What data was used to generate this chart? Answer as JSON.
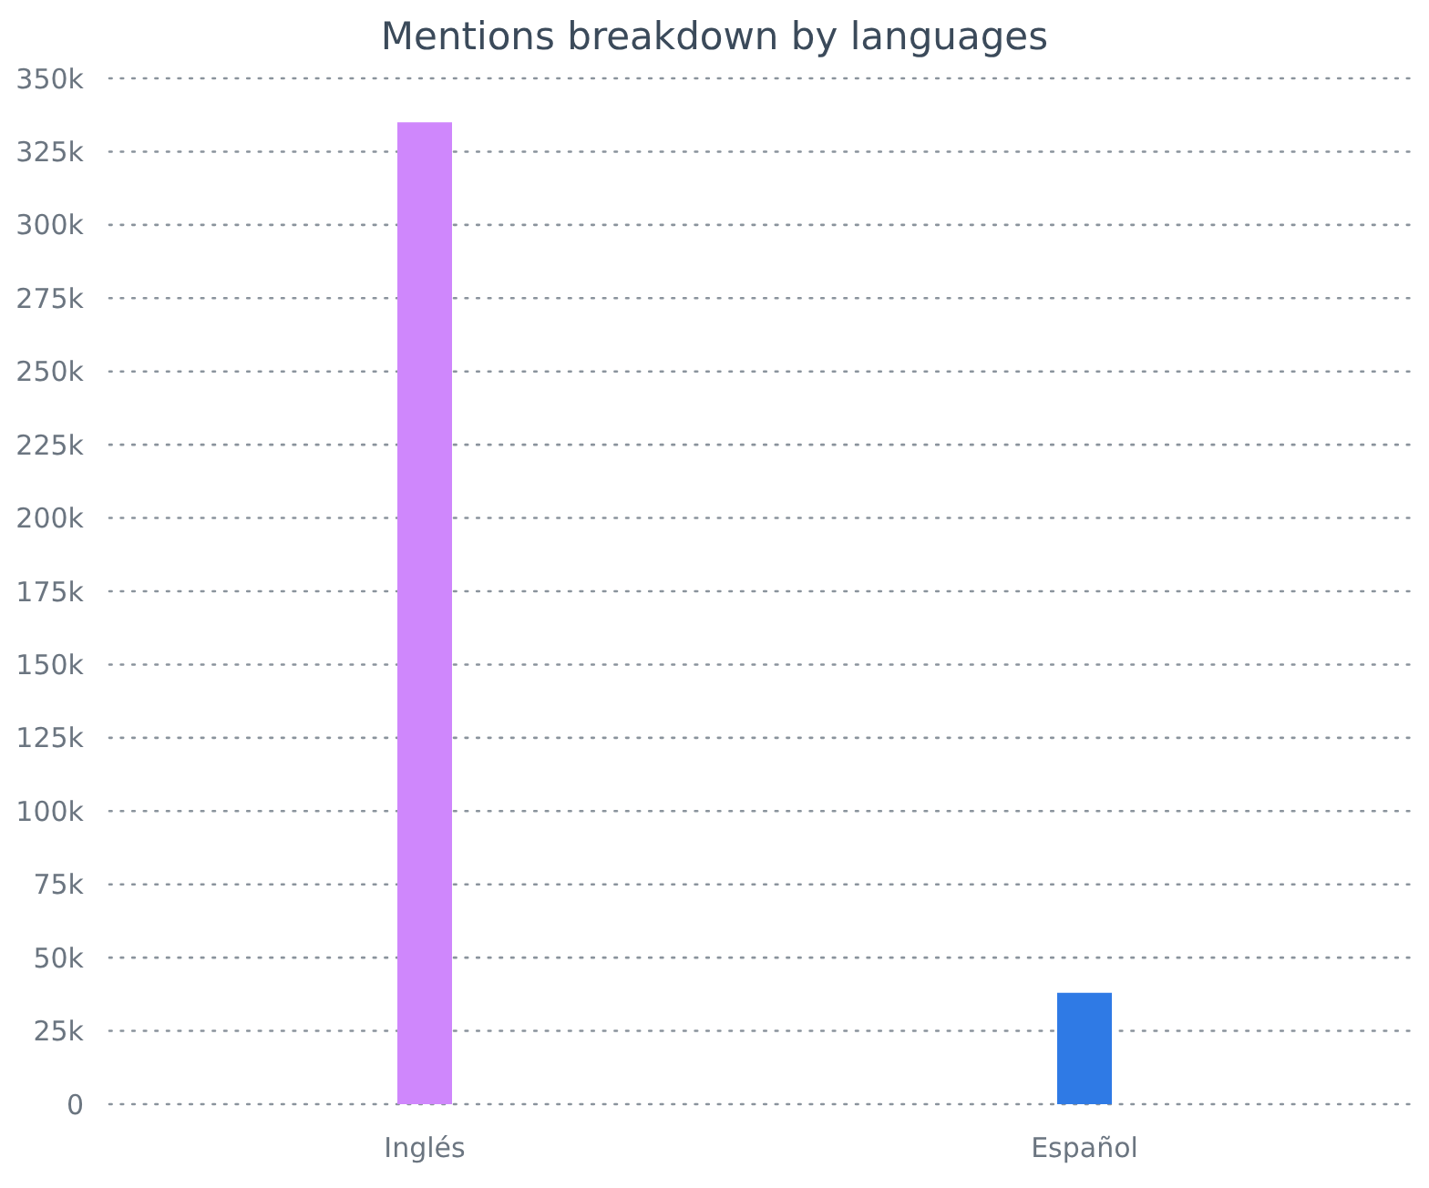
{
  "chart_data": {
    "type": "bar",
    "title": "Mentions breakdown by languages",
    "categories": [
      "Inglés",
      "Español"
    ],
    "values": [
      335000,
      38000
    ],
    "colors": [
      "#cf87fc",
      "#2f7ae5"
    ],
    "ylim": [
      0,
      350000
    ],
    "yticks": [
      {
        "value": 0,
        "label": "0"
      },
      {
        "value": 25000,
        "label": "25k"
      },
      {
        "value": 50000,
        "label": "50k"
      },
      {
        "value": 75000,
        "label": "75k"
      },
      {
        "value": 100000,
        "label": "100k"
      },
      {
        "value": 125000,
        "label": "125k"
      },
      {
        "value": 150000,
        "label": "150k"
      },
      {
        "value": 175000,
        "label": "175k"
      },
      {
        "value": 200000,
        "label": "200k"
      },
      {
        "value": 225000,
        "label": "225k"
      },
      {
        "value": 250000,
        "label": "250k"
      },
      {
        "value": 275000,
        "label": "275k"
      },
      {
        "value": 300000,
        "label": "300k"
      },
      {
        "value": 325000,
        "label": "325k"
      },
      {
        "value": 350000,
        "label": "350k"
      }
    ],
    "grid": "y"
  }
}
